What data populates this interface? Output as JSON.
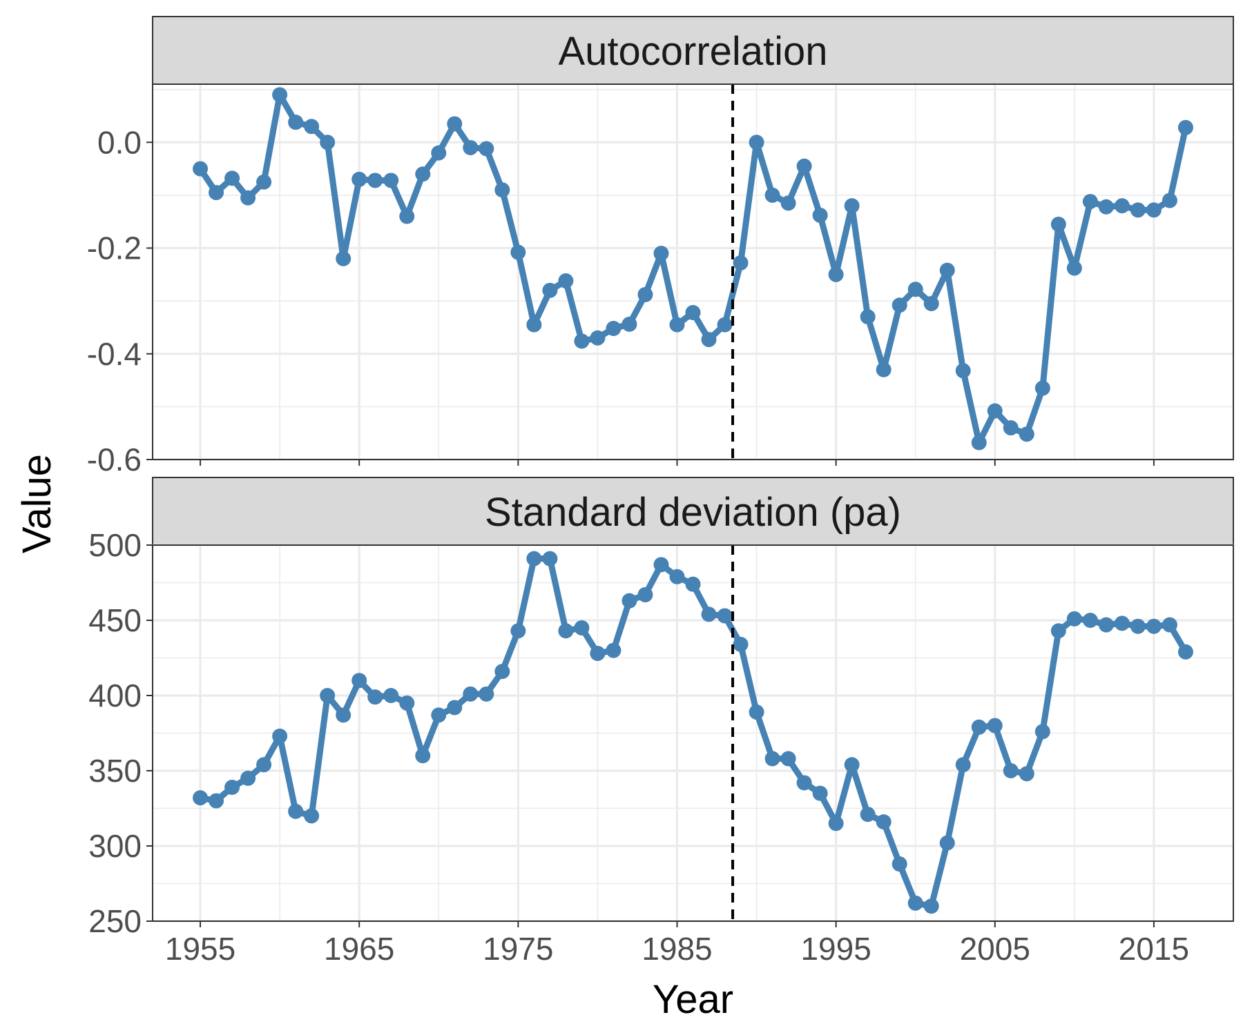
{
  "chart_data": {
    "type": "line",
    "xlabel": "Year",
    "ylabel": "Value",
    "x_ticks": [
      1955,
      1965,
      1975,
      1985,
      1995,
      2005,
      2015
    ],
    "xlim": [
      1952,
      2020
    ],
    "series_color": "#4682B4",
    "vline_x": 1988.5,
    "vline_style": "dashed",
    "grid": true,
    "x": [
      1955,
      1956,
      1957,
      1958,
      1959,
      1960,
      1961,
      1962,
      1963,
      1964,
      1965,
      1966,
      1967,
      1968,
      1969,
      1970,
      1971,
      1972,
      1973,
      1974,
      1975,
      1976,
      1977,
      1978,
      1979,
      1980,
      1981,
      1982,
      1983,
      1984,
      1985,
      1986,
      1987,
      1988,
      1989,
      1990,
      1991,
      1992,
      1993,
      1994,
      1995,
      1996,
      1997,
      1998,
      1999,
      2000,
      2001,
      2002,
      2003,
      2004,
      2005,
      2006,
      2007,
      2008,
      2009,
      2010,
      2011,
      2012,
      2013,
      2014,
      2015,
      2016,
      2017
    ],
    "panels": [
      {
        "title": "Autocorrelation",
        "ylim": [
          -0.6,
          0.11
        ],
        "y_ticks": [
          0.0,
          -0.2,
          -0.4,
          -0.6
        ],
        "y_tick_labels": [
          "0.0",
          "-0.2",
          "-0.4",
          "-0.6"
        ],
        "values": [
          -0.05,
          -0.095,
          -0.068,
          -0.105,
          -0.075,
          0.09,
          0.038,
          0.03,
          0.0,
          -0.22,
          -0.07,
          -0.072,
          -0.072,
          -0.14,
          -0.06,
          -0.02,
          0.035,
          -0.01,
          -0.012,
          -0.09,
          -0.208,
          -0.345,
          -0.28,
          -0.262,
          -0.376,
          -0.37,
          -0.352,
          -0.344,
          -0.288,
          -0.21,
          -0.345,
          -0.322,
          -0.373,
          -0.345,
          -0.228,
          0.0,
          -0.1,
          -0.115,
          -0.045,
          -0.138,
          -0.25,
          -0.12,
          -0.33,
          -0.43,
          -0.308,
          -0.278,
          -0.305,
          -0.242,
          -0.432,
          -0.568,
          -0.508,
          -0.54,
          -0.552,
          -0.465,
          -0.155,
          -0.238,
          -0.112,
          -0.122,
          -0.12,
          -0.128,
          -0.128,
          -0.11,
          0.028
        ]
      },
      {
        "title": "Standard deviation (pa)",
        "ylim": [
          250,
          500
        ],
        "y_ticks": [
          500,
          450,
          400,
          350,
          300,
          250
        ],
        "y_tick_labels": [
          "500",
          "450",
          "400",
          "350",
          "300",
          "250"
        ],
        "values": [
          332,
          330,
          339,
          345,
          354,
          373,
          323,
          320,
          400,
          387,
          410,
          399,
          400,
          395,
          360,
          387,
          392,
          401,
          401,
          416,
          443,
          491,
          491,
          443,
          445,
          428,
          430,
          463,
          467,
          487,
          479,
          474,
          454,
          453,
          434,
          389,
          358,
          358,
          342,
          335,
          315,
          354,
          321,
          316,
          288,
          262,
          260,
          302,
          354,
          379,
          380,
          350,
          348,
          376,
          443,
          451,
          450,
          447,
          448,
          446,
          446,
          447,
          429
        ]
      }
    ]
  }
}
